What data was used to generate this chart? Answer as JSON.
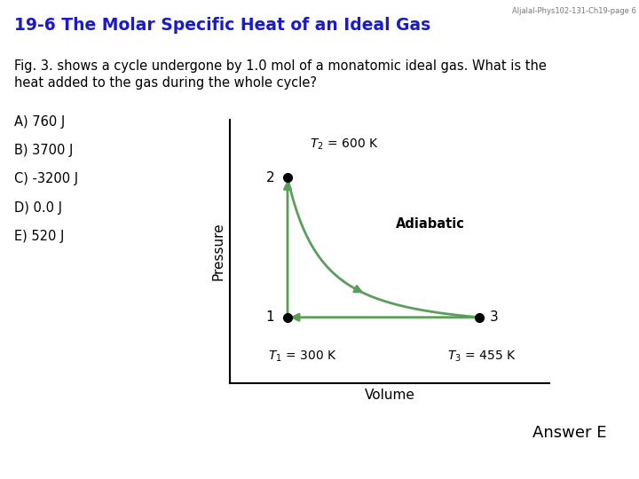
{
  "title": "19-6 The Molar Specific Heat of an Ideal Gas",
  "watermark": "Aljalal-Phys102-131-Ch19-page 6",
  "fig_text_line1": "Fig. 3. shows a cycle undergone by 1.0 mol of a monatomic ideal gas. What is the",
  "fig_text_line2": "heat added to the gas during the whole cycle?",
  "choices": [
    "A) 760 J",
    "B) 3700 J",
    "C) -3200 J",
    "D) 0.0 J",
    "E) 520 J"
  ],
  "answer": "Answer E",
  "T1_label": "$T_1$ = 300 K",
  "T2_label": "$T_2$ = 600 K",
  "T3_label": "$T_3$ = 455 K",
  "adiabatic_label": "Adiabatic",
  "xlabel": "Volume",
  "ylabel": "Pressure",
  "arrow_color": "#5a9e5a",
  "bg_color": "#ffffff",
  "title_color": "#1a1acd",
  "text_color": "#000000",
  "p1": [
    0.18,
    0.25
  ],
  "p2": [
    0.18,
    0.78
  ],
  "p3": [
    0.78,
    0.25
  ]
}
